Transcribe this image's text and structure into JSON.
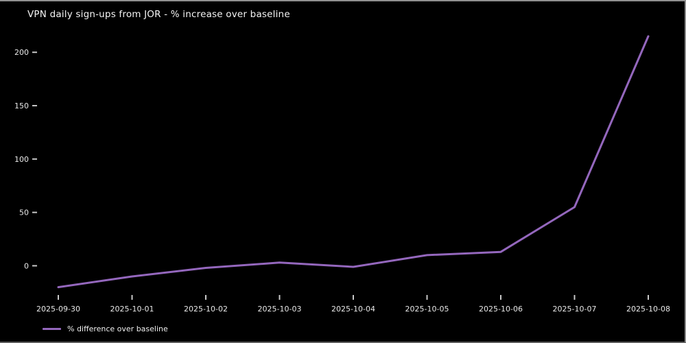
{
  "window": {
    "background": "#000000",
    "border_color_top": "#909090",
    "border_color_right": "#8c8c8c",
    "border_color_bottom": "#5e5e5e"
  },
  "chart_data": {
    "type": "line",
    "title": "VPN daily sign-ups from JOR - % increase over baseline",
    "categories": [
      "2025-09-30",
      "2025-10-01",
      "2025-10-02",
      "2025-10-03",
      "2025-10-04",
      "2025-10-05",
      "2025-10-06",
      "2025-10-07",
      "2025-10-08"
    ],
    "series": [
      {
        "name": "% difference over baseline",
        "values": [
          -20,
          -10,
          -2,
          3,
          -1,
          10,
          13,
          55,
          215
        ],
        "color": "#9467bd"
      }
    ],
    "xlabel": "",
    "ylabel": "",
    "yticks": [
      0,
      50,
      100,
      150,
      200
    ],
    "ylim": [
      -28,
      222
    ],
    "grid": false,
    "legend_position": "lower-left-below-axis",
    "background_color": "#000000",
    "text_color": "#e8e8e8",
    "tick_color": "#c8c8c8"
  },
  "legend": {
    "label": "% difference over baseline",
    "swatch_color": "#9467bd"
  }
}
